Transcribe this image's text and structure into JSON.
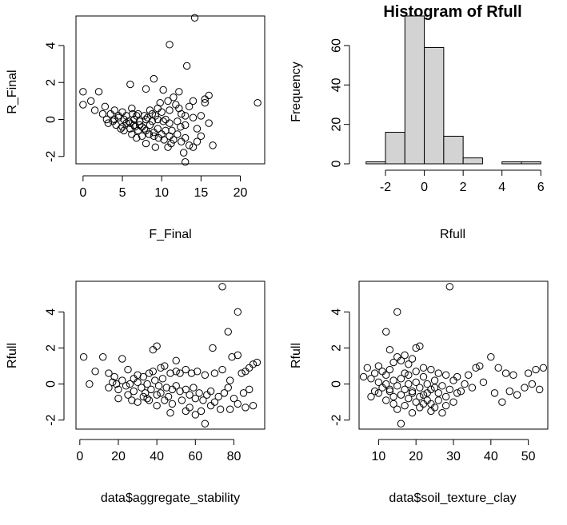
{
  "chart_data": [
    {
      "type": "scatter",
      "title": "",
      "xlabel": "F_Final",
      "ylabel": "R_Final",
      "xticks": [
        0,
        5,
        10,
        15,
        20
      ],
      "yticks": [
        -2,
        0,
        2,
        4
      ],
      "xlim": [
        -0.9,
        23.1
      ],
      "ylim": [
        -2.4,
        5.6
      ],
      "points": [
        [
          14.2,
          5.5
        ],
        [
          11.0,
          4.05
        ],
        [
          13.2,
          2.9
        ],
        [
          9.0,
          2.2
        ],
        [
          8.0,
          1.65
        ],
        [
          22.2,
          0.9
        ],
        [
          0.0,
          1.5
        ],
        [
          2.0,
          1.5
        ],
        [
          6.0,
          1.9
        ],
        [
          16.0,
          1.3
        ],
        [
          10.2,
          1.6
        ],
        [
          11.5,
          1.2
        ],
        [
          12.2,
          1.5
        ],
        [
          14.0,
          1.0
        ],
        [
          15.5,
          1.1
        ],
        [
          1.0,
          1.0
        ],
        [
          0.0,
          0.8
        ],
        [
          2.8,
          0.7
        ],
        [
          3.5,
          0.3
        ],
        [
          4.0,
          0.5
        ],
        [
          5.0,
          0.4
        ],
        [
          6.2,
          0.6
        ],
        [
          7.0,
          0.3
        ],
        [
          8.5,
          0.5
        ],
        [
          9.5,
          0.6
        ],
        [
          10.0,
          0.4
        ],
        [
          11.0,
          0.5
        ],
        [
          12.5,
          0.3
        ],
        [
          13.0,
          0.2
        ],
        [
          14.0,
          0.1
        ],
        [
          15.0,
          0.2
        ],
        [
          15.5,
          0.9
        ],
        [
          3.0,
          0.0
        ],
        [
          4.0,
          0.0
        ],
        [
          4.5,
          0.1
        ],
        [
          5.2,
          0.0
        ],
        [
          5.8,
          -0.1
        ],
        [
          6.5,
          0.0
        ],
        [
          7.2,
          -0.1
        ],
        [
          8.0,
          0.0
        ],
        [
          8.8,
          -0.1
        ],
        [
          9.5,
          0.0
        ],
        [
          10.2,
          -0.1
        ],
        [
          11.0,
          -0.2
        ],
        [
          12.0,
          -0.1
        ],
        [
          13.0,
          -0.3
        ],
        [
          14.5,
          -0.5
        ],
        [
          16.0,
          -0.2
        ],
        [
          4.2,
          -0.3
        ],
        [
          5.0,
          -0.4
        ],
        [
          5.5,
          -0.2
        ],
        [
          6.0,
          -0.5
        ],
        [
          6.5,
          -0.3
        ],
        [
          7.0,
          -0.6
        ],
        [
          7.5,
          -0.4
        ],
        [
          8.0,
          -0.6
        ],
        [
          8.5,
          -0.3
        ],
        [
          9.0,
          -0.7
        ],
        [
          9.5,
          -0.5
        ],
        [
          10.0,
          -0.8
        ],
        [
          10.5,
          -0.6
        ],
        [
          11.0,
          -0.9
        ],
        [
          11.5,
          -1.1
        ],
        [
          12.0,
          -0.8
        ],
        [
          12.5,
          -1.2
        ],
        [
          13.0,
          -1.0
        ],
        [
          13.5,
          -1.4
        ],
        [
          14.0,
          -1.5
        ],
        [
          14.5,
          -1.2
        ],
        [
          15.0,
          -0.9
        ],
        [
          16.5,
          -1.4
        ],
        [
          13.0,
          -2.3
        ],
        [
          6.8,
          -1.0
        ],
        [
          8.0,
          -1.3
        ],
        [
          9.2,
          -1.5
        ],
        [
          10.8,
          -1.5
        ],
        [
          12.8,
          -1.8
        ],
        [
          11.2,
          -1.3
        ],
        [
          7.5,
          -0.9
        ],
        [
          6.2,
          -0.8
        ],
        [
          5.2,
          -0.6
        ],
        [
          4.8,
          -0.5
        ],
        [
          3.2,
          -0.2
        ],
        [
          2.5,
          0.3
        ],
        [
          1.5,
          0.5
        ],
        [
          9.8,
          0.9
        ],
        [
          10.8,
          1.0
        ],
        [
          11.8,
          0.8
        ],
        [
          12.2,
          0.6
        ],
        [
          13.5,
          0.7
        ],
        [
          6.8,
          0.2
        ],
        [
          7.8,
          0.2
        ],
        [
          8.2,
          0.1
        ],
        [
          8.8,
          0.3
        ],
        [
          9.2,
          0.2
        ],
        [
          10.5,
          0.0
        ],
        [
          5.5,
          0.2
        ],
        [
          6.0,
          -0.2
        ],
        [
          6.6,
          -0.4
        ],
        [
          7.2,
          -0.3
        ],
        [
          7.8,
          -0.5
        ],
        [
          8.4,
          -0.8
        ],
        [
          9.0,
          -0.9
        ],
        [
          9.6,
          -1.0
        ],
        [
          10.3,
          -1.1
        ],
        [
          11.3,
          -0.6
        ],
        [
          12.4,
          -0.4
        ],
        [
          6.3,
          0.3
        ],
        [
          4.5,
          0.2
        ],
        [
          3.8,
          -0.1
        ]
      ]
    },
    {
      "type": "bar",
      "title": "Histogram of Rfull",
      "xlabel": "Rfull",
      "ylabel": "Frequency",
      "xticks": [
        -2,
        0,
        2,
        4,
        6
      ],
      "yticks": [
        0,
        20,
        40,
        60
      ],
      "xlim": [
        -3.36,
        6.36
      ],
      "ylim": [
        0,
        75
      ],
      "bins": [
        {
          "from": -3,
          "to": -2,
          "count": 1
        },
        {
          "from": -2,
          "to": -1,
          "count": 16
        },
        {
          "from": -1,
          "to": 0,
          "count": 75
        },
        {
          "from": 0,
          "to": 1,
          "count": 59
        },
        {
          "from": 1,
          "to": 2,
          "count": 14
        },
        {
          "from": 2,
          "to": 3,
          "count": 3
        },
        {
          "from": 3,
          "to": 4,
          "count": 0
        },
        {
          "from": 4,
          "to": 5,
          "count": 1
        },
        {
          "from": 5,
          "to": 6,
          "count": 1
        }
      ]
    },
    {
      "type": "scatter",
      "title": "",
      "xlabel": "data$aggregate_stability",
      "ylabel": "Rfull",
      "xticks": [
        0,
        20,
        40,
        60,
        80
      ],
      "yticks": [
        -2,
        0,
        2,
        4
      ],
      "xlim": [
        -2,
        96
      ],
      "ylim": [
        -2.5,
        5.7
      ],
      "points": [
        [
          74,
          5.4
        ],
        [
          82,
          4.0
        ],
        [
          77,
          2.9
        ],
        [
          69,
          2.0
        ],
        [
          38,
          1.9
        ],
        [
          40,
          2.1
        ],
        [
          2,
          1.5
        ],
        [
          12,
          1.5
        ],
        [
          22,
          1.4
        ],
        [
          50,
          1.3
        ],
        [
          79,
          1.5
        ],
        [
          82,
          1.6
        ],
        [
          90,
          1.1
        ],
        [
          92,
          1.2
        ],
        [
          88,
          0.9
        ],
        [
          5,
          0.0
        ],
        [
          8,
          0.7
        ],
        [
          15,
          0.6
        ],
        [
          18,
          0.4
        ],
        [
          25,
          0.8
        ],
        [
          28,
          0.3
        ],
        [
          30,
          0.5
        ],
        [
          33,
          0.4
        ],
        [
          36,
          0.6
        ],
        [
          38,
          0.7
        ],
        [
          42,
          0.9
        ],
        [
          44,
          1.0
        ],
        [
          47,
          0.6
        ],
        [
          50,
          0.7
        ],
        [
          52,
          0.6
        ],
        [
          55,
          0.8
        ],
        [
          58,
          0.6
        ],
        [
          61,
          0.7
        ],
        [
          65,
          0.5
        ],
        [
          70,
          0.6
        ],
        [
          74,
          0.8
        ],
        [
          78,
          0.2
        ],
        [
          84,
          0.6
        ],
        [
          86,
          0.7
        ],
        [
          15,
          -0.2
        ],
        [
          17,
          0.1
        ],
        [
          19,
          0.0
        ],
        [
          20,
          -0.3
        ],
        [
          22,
          0.2
        ],
        [
          24,
          -0.1
        ],
        [
          26,
          0.0
        ],
        [
          28,
          -0.4
        ],
        [
          30,
          0.1
        ],
        [
          32,
          -0.2
        ],
        [
          34,
          -0.5
        ],
        [
          35,
          0.0
        ],
        [
          37,
          -0.3
        ],
        [
          39,
          0.2
        ],
        [
          41,
          -0.1
        ],
        [
          42,
          -0.5
        ],
        [
          43,
          0.3
        ],
        [
          45,
          -0.2
        ],
        [
          46,
          -0.7
        ],
        [
          48,
          -0.3
        ],
        [
          50,
          -0.1
        ],
        [
          52,
          -0.4
        ],
        [
          55,
          -0.3
        ],
        [
          57,
          -0.6
        ],
        [
          59,
          -0.2
        ],
        [
          60,
          -0.8
        ],
        [
          62,
          -0.5
        ],
        [
          64,
          -0.9
        ],
        [
          66,
          -0.6
        ],
        [
          68,
          -0.4
        ],
        [
          70,
          -1.0
        ],
        [
          72,
          -0.7
        ],
        [
          75,
          -0.5
        ],
        [
          77,
          -0.2
        ],
        [
          80,
          -0.8
        ],
        [
          82,
          -1.1
        ],
        [
          85,
          -0.5
        ],
        [
          88,
          -0.3
        ],
        [
          90,
          -1.2
        ],
        [
          20,
          -0.8
        ],
        [
          25,
          -0.6
        ],
        [
          30,
          -1.0
        ],
        [
          35,
          -0.8
        ],
        [
          40,
          -1.2
        ],
        [
          44,
          -0.9
        ],
        [
          47,
          -1.6
        ],
        [
          55,
          -1.5
        ],
        [
          57,
          -1.3
        ],
        [
          60,
          -1.7
        ],
        [
          63,
          -1.5
        ],
        [
          65,
          -2.2
        ],
        [
          68,
          -1.2
        ],
        [
          73,
          -1.4
        ],
        [
          78,
          -1.4
        ],
        [
          86,
          -1.3
        ],
        [
          40,
          -0.6
        ],
        [
          36,
          -0.9
        ],
        [
          48,
          -1.1
        ],
        [
          53,
          -0.9
        ],
        [
          33,
          -0.7
        ],
        [
          27,
          -0.9
        ]
      ]
    },
    {
      "type": "scatter",
      "title": "",
      "xlabel": "data$soil_texture_clay",
      "ylabel": "Rfull",
      "xticks": [
        10,
        20,
        30,
        40,
        50
      ],
      "yticks": [
        -2,
        0,
        2,
        4
      ],
      "xlim": [
        4.8,
        55.2
      ],
      "ylim": [
        -2.5,
        5.7
      ],
      "points": [
        [
          29,
          5.4
        ],
        [
          15,
          4.0
        ],
        [
          12,
          2.9
        ],
        [
          20,
          2.0
        ],
        [
          21,
          2.1
        ],
        [
          13,
          1.9
        ],
        [
          7,
          0.9
        ],
        [
          9,
          0.6
        ],
        [
          10,
          1.0
        ],
        [
          11,
          0.7
        ],
        [
          12,
          0.5
        ],
        [
          13,
          0.8
        ],
        [
          14,
          1.2
        ],
        [
          15,
          1.5
        ],
        [
          16,
          1.3
        ],
        [
          17,
          1.6
        ],
        [
          18,
          1.1
        ],
        [
          19,
          1.4
        ],
        [
          22,
          0.9
        ],
        [
          24,
          0.8
        ],
        [
          26,
          0.6
        ],
        [
          28,
          0.5
        ],
        [
          31,
          0.4
        ],
        [
          34,
          0.5
        ],
        [
          36,
          0.9
        ],
        [
          37,
          1.0
        ],
        [
          40,
          1.5
        ],
        [
          42,
          0.9
        ],
        [
          44,
          0.6
        ],
        [
          46,
          0.5
        ],
        [
          50,
          0.6
        ],
        [
          52,
          0.8
        ],
        [
          54,
          0.9
        ],
        [
          6,
          0.4
        ],
        [
          8,
          0.3
        ],
        [
          10,
          0.1
        ],
        [
          11,
          -0.2
        ],
        [
          12,
          0.0
        ],
        [
          13,
          -0.4
        ],
        [
          14,
          0.2
        ],
        [
          15,
          -0.1
        ],
        [
          16,
          0.3
        ],
        [
          17,
          -0.3
        ],
        [
          18,
          0.0
        ],
        [
          19,
          -0.5
        ],
        [
          20,
          0.1
        ],
        [
          21,
          -0.2
        ],
        [
          22,
          -0.6
        ],
        [
          23,
          0.0
        ],
        [
          24,
          -0.3
        ],
        [
          25,
          0.2
        ],
        [
          26,
          -0.5
        ],
        [
          27,
          -0.1
        ],
        [
          28,
          -0.7
        ],
        [
          29,
          -0.3
        ],
        [
          30,
          0.2
        ],
        [
          32,
          -0.4
        ],
        [
          33,
          0.0
        ],
        [
          35,
          -0.2
        ],
        [
          38,
          0.1
        ],
        [
          41,
          -0.5
        ],
        [
          43,
          -1.0
        ],
        [
          45,
          -0.4
        ],
        [
          47,
          -0.6
        ],
        [
          49,
          -0.2
        ],
        [
          51,
          0.0
        ],
        [
          53,
          -0.3
        ],
        [
          8,
          -0.7
        ],
        [
          10,
          -0.5
        ],
        [
          12,
          -0.9
        ],
        [
          14,
          -1.1
        ],
        [
          15,
          -1.4
        ],
        [
          16,
          -2.2
        ],
        [
          17,
          -1.2
        ],
        [
          18,
          -0.8
        ],
        [
          19,
          -1.6
        ],
        [
          20,
          -1.0
        ],
        [
          21,
          -1.3
        ],
        [
          22,
          -1.1
        ],
        [
          23,
          -0.9
        ],
        [
          24,
          -1.5
        ],
        [
          25,
          -1.3
        ],
        [
          26,
          -0.9
        ],
        [
          27,
          -1.6
        ],
        [
          28,
          -1.2
        ],
        [
          30,
          -1.0
        ],
        [
          13,
          -0.3
        ],
        [
          16,
          -0.6
        ],
        [
          19,
          -0.4
        ],
        [
          21,
          -0.7
        ],
        [
          23,
          -0.5
        ],
        [
          25,
          -0.2
        ],
        [
          18,
          0.5
        ],
        [
          20,
          0.7
        ],
        [
          22,
          0.4
        ],
        [
          17,
          0.6
        ],
        [
          14,
          -0.7
        ],
        [
          24,
          -1.1
        ],
        [
          31,
          -0.5
        ],
        [
          9,
          -0.4
        ]
      ]
    }
  ]
}
